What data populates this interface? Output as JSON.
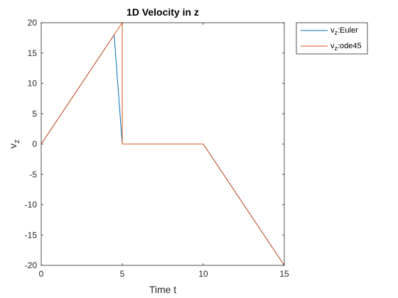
{
  "chart_data": {
    "type": "line",
    "title": "1D Velocity in z",
    "xlabel": "Time t",
    "ylabel_main": "v",
    "ylabel_sub": "z",
    "xlim": [
      0,
      15
    ],
    "ylim": [
      -20,
      20
    ],
    "xticks": [
      0,
      5,
      10,
      15
    ],
    "yticks": [
      -20,
      -15,
      -10,
      -5,
      0,
      5,
      10,
      15,
      20
    ],
    "grid": false,
    "legend_position": "outside-top-right",
    "series": [
      {
        "name_prefix": "v",
        "name_sub": "z",
        "name_suffix": ":Euler",
        "color": "#0072BD",
        "x": [
          0,
          4.5,
          5.0,
          10.0,
          15.0
        ],
        "y": [
          0,
          18,
          0,
          0,
          -20
        ]
      },
      {
        "name_prefix": "v",
        "name_sub": "z",
        "name_suffix": ":ode45",
        "color": "#D95319",
        "x": [
          0,
          5.0,
          5.0,
          10.0,
          15.0
        ],
        "y": [
          0,
          20,
          0,
          0,
          -20
        ]
      }
    ]
  }
}
